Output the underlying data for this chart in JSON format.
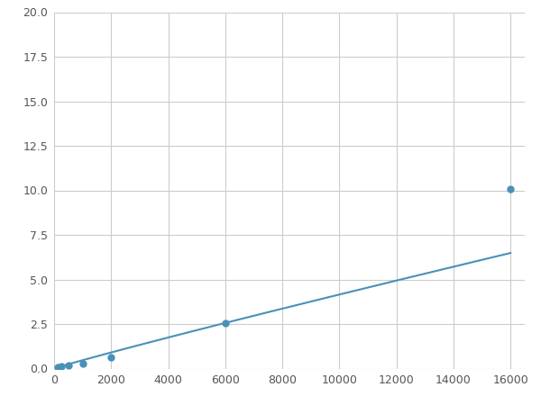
{
  "x": [
    125,
    250,
    500,
    1000,
    2000,
    6000,
    16000
  ],
  "y": [
    0.1,
    0.15,
    0.2,
    0.28,
    0.65,
    2.55,
    10.1
  ],
  "line_color": "#4a90b8",
  "marker_color": "#4a90b8",
  "marker_size": 5,
  "xlim": [
    0,
    16500
  ],
  "ylim": [
    0,
    20.0
  ],
  "xticks": [
    0,
    2000,
    4000,
    6000,
    8000,
    10000,
    12000,
    14000,
    16000
  ],
  "yticks": [
    0.0,
    2.5,
    5.0,
    7.5,
    10.0,
    12.5,
    15.0,
    17.5,
    20.0
  ],
  "grid_color": "#cccccc",
  "background_color": "#ffffff",
  "linewidth": 1.5
}
